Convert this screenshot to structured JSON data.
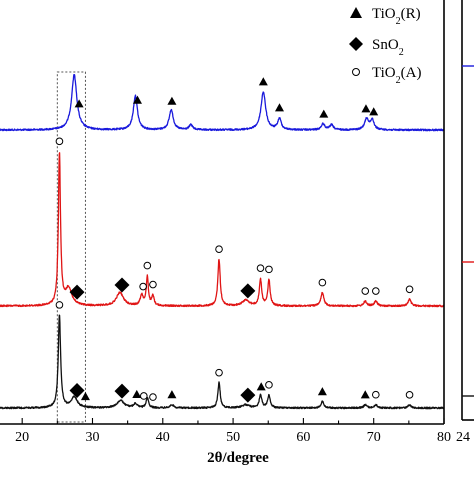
{
  "chart_data": {
    "type": "line",
    "xlabel": "2θ/degree",
    "ylabel": "",
    "xlim": [
      14,
      80
    ],
    "x_ticks": [
      {
        "value": 20,
        "label": "20"
      },
      {
        "value": 30,
        "label": "30"
      },
      {
        "value": 40,
        "label": "40"
      },
      {
        "value": 50,
        "label": "50"
      },
      {
        "value": 60,
        "label": "60"
      },
      {
        "value": 70,
        "label": "70"
      },
      {
        "value": 80,
        "label": "80"
      }
    ],
    "side_panel_tick_label": "24",
    "legend": [
      {
        "marker": "triangle",
        "text": "TiO",
        "sub": "2",
        "tail": "(R)"
      },
      {
        "marker": "diamond",
        "text": "SnO",
        "sub": "2",
        "tail": ""
      },
      {
        "marker": "circle",
        "text": "TiO",
        "sub": "2",
        "tail": "(A)"
      }
    ],
    "highlight_box_x": [
      25.0,
      29.0
    ],
    "series": [
      {
        "color": "#1a1adc",
        "baseline": 0.0,
        "peaks": [
          {
            "x": 27.4,
            "h": 0.55,
            "w": 0.45
          },
          {
            "x": 36.1,
            "h": 0.34,
            "w": 0.35
          },
          {
            "x": 41.2,
            "h": 0.2,
            "w": 0.35
          },
          {
            "x": 44.0,
            "h": 0.05,
            "w": 0.3
          },
          {
            "x": 54.3,
            "h": 0.38,
            "w": 0.4
          },
          {
            "x": 56.6,
            "h": 0.11,
            "w": 0.3
          },
          {
            "x": 62.8,
            "h": 0.06,
            "w": 0.3
          },
          {
            "x": 64.0,
            "h": 0.05,
            "w": 0.3
          },
          {
            "x": 69.0,
            "h": 0.11,
            "w": 0.35
          },
          {
            "x": 69.8,
            "h": 0.1,
            "w": 0.3
          }
        ],
        "markers": [
          {
            "type": "triangle",
            "x": 28.1
          },
          {
            "type": "triangle",
            "x": 36.4
          },
          {
            "type": "triangle",
            "x": 41.3
          },
          {
            "type": "triangle",
            "x": 54.3
          },
          {
            "type": "triangle",
            "x": 56.6
          },
          {
            "type": "triangle",
            "x": 62.9
          },
          {
            "type": "triangle",
            "x": 68.9
          },
          {
            "type": "triangle",
            "x": 70.0
          }
        ]
      },
      {
        "color": "#e01515",
        "baseline": 0.0,
        "peaks": [
          {
            "x": 25.3,
            "h": 1.6,
            "w": 0.18
          },
          {
            "x": 26.6,
            "h": 0.18,
            "w": 0.55
          },
          {
            "x": 33.9,
            "h": 0.14,
            "w": 0.6
          },
          {
            "x": 37.0,
            "h": 0.11,
            "w": 0.25
          },
          {
            "x": 37.8,
            "h": 0.3,
            "w": 0.18
          },
          {
            "x": 38.6,
            "h": 0.1,
            "w": 0.2
          },
          {
            "x": 48.0,
            "h": 0.49,
            "w": 0.2
          },
          {
            "x": 51.8,
            "h": 0.06,
            "w": 0.6
          },
          {
            "x": 53.9,
            "h": 0.28,
            "w": 0.2
          },
          {
            "x": 55.1,
            "h": 0.27,
            "w": 0.2
          },
          {
            "x": 62.7,
            "h": 0.14,
            "w": 0.25
          },
          {
            "x": 68.8,
            "h": 0.05,
            "w": 0.25
          },
          {
            "x": 70.3,
            "h": 0.05,
            "w": 0.25
          },
          {
            "x": 75.1,
            "h": 0.07,
            "w": 0.25
          }
        ],
        "markers": [
          {
            "type": "circle",
            "x": 25.3
          },
          {
            "type": "diamond",
            "x": 27.8
          },
          {
            "type": "diamond",
            "x": 34.2
          },
          {
            "type": "circle",
            "x": 37.2
          },
          {
            "type": "circle",
            "x": 37.8
          },
          {
            "type": "circle",
            "x": 38.6
          },
          {
            "type": "circle",
            "x": 48.0
          },
          {
            "type": "diamond",
            "x": 52.1
          },
          {
            "type": "circle",
            "x": 53.9
          },
          {
            "type": "circle",
            "x": 55.1
          },
          {
            "type": "circle",
            "x": 62.7
          },
          {
            "type": "circle",
            "x": 68.8
          },
          {
            "type": "circle",
            "x": 70.3
          },
          {
            "type": "circle",
            "x": 75.1
          }
        ]
      },
      {
        "color": "#111111",
        "baseline": 0.0,
        "peaks": [
          {
            "x": 25.3,
            "h": 0.88,
            "w": 0.2
          },
          {
            "x": 27.4,
            "h": 0.1,
            "w": 0.55
          },
          {
            "x": 34.0,
            "h": 0.07,
            "w": 0.6
          },
          {
            "x": 36.1,
            "h": 0.04,
            "w": 0.3
          },
          {
            "x": 37.8,
            "h": 0.1,
            "w": 0.2
          },
          {
            "x": 41.3,
            "h": 0.03,
            "w": 0.3
          },
          {
            "x": 48.0,
            "h": 0.24,
            "w": 0.2
          },
          {
            "x": 51.8,
            "h": 0.03,
            "w": 0.6
          },
          {
            "x": 53.9,
            "h": 0.12,
            "w": 0.22
          },
          {
            "x": 55.1,
            "h": 0.12,
            "w": 0.22
          },
          {
            "x": 62.7,
            "h": 0.06,
            "w": 0.25
          },
          {
            "x": 68.8,
            "h": 0.03,
            "w": 0.25
          },
          {
            "x": 70.3,
            "h": 0.03,
            "w": 0.25
          },
          {
            "x": 75.1,
            "h": 0.03,
            "w": 0.25
          }
        ],
        "markers": [
          {
            "type": "circle",
            "x": 25.3
          },
          {
            "type": "diamond",
            "x": 27.8
          },
          {
            "type": "triangle",
            "x": 29.0
          },
          {
            "type": "diamond",
            "x": 34.2
          },
          {
            "type": "triangle",
            "x": 36.3
          },
          {
            "type": "circle",
            "x": 37.3
          },
          {
            "type": "circle",
            "x": 38.6
          },
          {
            "type": "triangle",
            "x": 41.3
          },
          {
            "type": "circle",
            "x": 48.0
          },
          {
            "type": "diamond",
            "x": 52.1
          },
          {
            "type": "triangle",
            "x": 54.0
          },
          {
            "type": "circle",
            "x": 55.1
          },
          {
            "type": "triangle",
            "x": 62.7
          },
          {
            "type": "triangle",
            "x": 68.8
          },
          {
            "type": "circle",
            "x": 70.3
          },
          {
            "type": "circle",
            "x": 75.1
          }
        ]
      }
    ]
  }
}
